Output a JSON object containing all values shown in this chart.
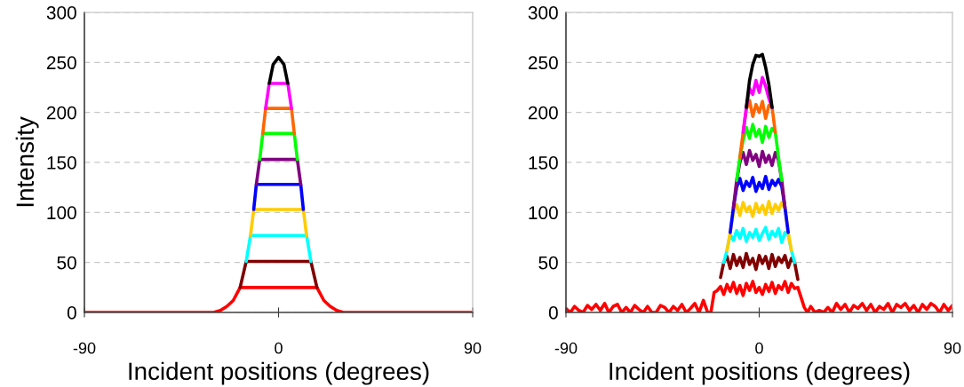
{
  "chart_data": [
    {
      "type": "line",
      "ylabel": "Intensity",
      "xlabel": "Incident positions (degrees)",
      "xlim": [
        -90,
        90
      ],
      "ylim": [
        0,
        300
      ],
      "xticks": [
        -90,
        0,
        90
      ],
      "yticks": [
        0,
        50,
        100,
        150,
        200,
        250,
        300
      ],
      "grid": "y",
      "x": [
        -90,
        -30,
        -27,
        -24,
        -21,
        -17.8,
        -15,
        -13,
        -11.5,
        -10.3,
        -8.7,
        -7.3,
        -6,
        -4.3,
        -2.5,
        0,
        2.5,
        4.3,
        6,
        7.3,
        8.7,
        10.3,
        11.5,
        13,
        15,
        17.8,
        21,
        24,
        27,
        30,
        90
      ],
      "series": [
        {
          "color": "#ff0000",
          "values": [
            0,
            0,
            2,
            6,
            12,
            25,
            25,
            25,
            25,
            25,
            25,
            25,
            25,
            25,
            25,
            25,
            25,
            25,
            25,
            25,
            25,
            25,
            25,
            25,
            25,
            25,
            12,
            6,
            2,
            0,
            0
          ]
        },
        {
          "color": "#800000",
          "values": [
            null,
            null,
            null,
            null,
            null,
            25,
            51,
            51,
            51,
            51,
            51,
            51,
            51,
            51,
            51,
            51,
            51,
            51,
            51,
            51,
            51,
            51,
            51,
            51,
            51,
            25,
            null,
            null,
            null,
            null,
            null
          ]
        },
        {
          "color": "#00ffff",
          "values": [
            null,
            null,
            null,
            null,
            null,
            null,
            51,
            77,
            77,
            77,
            77,
            77,
            77,
            77,
            77,
            77,
            77,
            77,
            77,
            77,
            77,
            77,
            77,
            77,
            51,
            null,
            null,
            null,
            null,
            null,
            null
          ]
        },
        {
          "color": "#ffcc00",
          "values": [
            null,
            null,
            null,
            null,
            null,
            null,
            null,
            77,
            103,
            103,
            103,
            103,
            103,
            103,
            103,
            103,
            103,
            103,
            103,
            103,
            103,
            103,
            103,
            77,
            null,
            null,
            null,
            null,
            null,
            null,
            null
          ]
        },
        {
          "color": "#0000ff",
          "values": [
            null,
            null,
            null,
            null,
            null,
            null,
            null,
            null,
            103,
            128,
            128,
            128,
            128,
            128,
            128,
            128,
            128,
            128,
            128,
            128,
            128,
            128,
            103,
            null,
            null,
            null,
            null,
            null,
            null,
            null,
            null
          ]
        },
        {
          "color": "#800080",
          "values": [
            null,
            null,
            null,
            null,
            null,
            null,
            null,
            null,
            null,
            128,
            153,
            153,
            153,
            153,
            153,
            153,
            153,
            153,
            153,
            153,
            153,
            128,
            null,
            null,
            null,
            null,
            null,
            null,
            null,
            null,
            null
          ]
        },
        {
          "color": "#00ff00",
          "values": [
            null,
            null,
            null,
            null,
            null,
            null,
            null,
            null,
            null,
            null,
            153,
            179,
            179,
            179,
            179,
            179,
            179,
            179,
            179,
            179,
            153,
            null,
            null,
            null,
            null,
            null,
            null,
            null,
            null,
            null,
            null
          ]
        },
        {
          "color": "#ff6600",
          "values": [
            null,
            null,
            null,
            null,
            null,
            null,
            null,
            null,
            null,
            null,
            null,
            179,
            204,
            204,
            204,
            204,
            204,
            204,
            204,
            179,
            null,
            null,
            null,
            null,
            null,
            null,
            null,
            null,
            null,
            null,
            null
          ]
        },
        {
          "color": "#ff00ff",
          "values": [
            null,
            null,
            null,
            null,
            null,
            null,
            null,
            null,
            null,
            null,
            null,
            null,
            204,
            229,
            229,
            229,
            229,
            229,
            204,
            null,
            null,
            null,
            null,
            null,
            null,
            null,
            null,
            null,
            null,
            null,
            null
          ]
        },
        {
          "color": "#000000",
          "values": [
            null,
            null,
            null,
            null,
            null,
            null,
            null,
            null,
            null,
            null,
            null,
            null,
            null,
            229,
            248,
            255,
            248,
            229,
            null,
            null,
            null,
            null,
            null,
            null,
            null,
            null,
            null,
            null,
            null,
            null,
            null
          ]
        }
      ]
    },
    {
      "type": "line",
      "xlabel": "Incident positions (degrees)",
      "xlim": [
        -90,
        90
      ],
      "ylim": [
        0,
        300
      ],
      "xticks": [
        -90,
        0,
        90
      ],
      "yticks": [
        0,
        50,
        100,
        150,
        200,
        250,
        300
      ],
      "grid": "y",
      "x": [
        -18,
        -16.5,
        -15,
        -13.5,
        -12,
        -10.5,
        -9,
        -7.5,
        -6,
        -4.5,
        -3,
        -1.5,
        0,
        1.5,
        3,
        4.5,
        6,
        7.5,
        9,
        10.5,
        12,
        13.5,
        15,
        16.5,
        18
      ],
      "series": [
        {
          "color": "#ff0000",
          "x": [
            -90,
            -88,
            -86,
            -84,
            -82,
            -80,
            -78,
            -76,
            -74,
            -72,
            -70,
            -68,
            -66,
            -64,
            -62,
            -60,
            -58,
            -56,
            -54,
            -52,
            -50,
            -48,
            -46,
            -44,
            -42,
            -40,
            -38,
            -36,
            -34,
            -32,
            -30,
            -28,
            -26,
            -24,
            -22.5,
            -21,
            -19.5,
            -18,
            -16.5,
            -15,
            -13.5,
            -12,
            -10.5,
            -9,
            -7.5,
            -6,
            -4.5,
            -3,
            -1.5,
            0,
            1.5,
            3,
            4.5,
            6,
            7.5,
            9,
            10.5,
            12,
            13.5,
            15,
            16.5,
            18,
            19.5,
            21,
            22.5,
            24,
            26,
            28,
            30,
            32,
            34,
            36,
            38,
            40,
            42,
            44,
            46,
            48,
            50,
            52,
            54,
            56,
            58,
            60,
            62,
            64,
            66,
            68,
            70,
            72,
            74,
            76,
            78,
            80,
            82,
            84,
            86,
            88,
            90
          ],
          "values": [
            4,
            0,
            6,
            2,
            0,
            7,
            3,
            8,
            2,
            9,
            0,
            6,
            8,
            0,
            5,
            0,
            7,
            3,
            0,
            6,
            0,
            0,
            7,
            5,
            0,
            6,
            2,
            8,
            0,
            4,
            9,
            0,
            12,
            0,
            0,
            20,
            22,
            26,
            18,
            28,
            21,
            30,
            19,
            27,
            17,
            29,
            22,
            31,
            20,
            25,
            18,
            28,
            21,
            30,
            19,
            27,
            23,
            31,
            20,
            29,
            24,
            25,
            15,
            5,
            0,
            6,
            0,
            2,
            0,
            5,
            0,
            9,
            3,
            8,
            0,
            7,
            4,
            9,
            2,
            8,
            0,
            6,
            3,
            9,
            0,
            8,
            5,
            9,
            2,
            7,
            0,
            8,
            3,
            9,
            6,
            0,
            8,
            2,
            7
          ]
        },
        {
          "color": "#800000",
          "values": [
            35,
            50,
            56,
            44,
            58,
            47,
            55,
            45,
            59,
            48,
            54,
            43,
            57,
            49,
            56,
            44,
            58,
            46,
            55,
            50,
            57,
            45,
            54,
            50,
            33
          ]
        },
        {
          "color": "#00ffff",
          "values": [
            null,
            50,
            62,
            78,
            72,
            82,
            74,
            84,
            71,
            80,
            75,
            83,
            72,
            79,
            85,
            73,
            81,
            76,
            84,
            70,
            80,
            78,
            62,
            50,
            null
          ]
        },
        {
          "color": "#ffcc00",
          "values": [
            null,
            null,
            62,
            80,
            100,
            108,
            97,
            110,
            101,
            106,
            96,
            109,
            100,
            107,
            98,
            111,
            99,
            108,
            102,
            110,
            104,
            80,
            62,
            null,
            null
          ]
        },
        {
          "color": "#0000ff",
          "values": [
            null,
            null,
            null,
            80,
            105,
            125,
            134,
            122,
            131,
            126,
            135,
            121,
            130,
            124,
            136,
            123,
            132,
            127,
            133,
            126,
            105,
            80,
            null,
            null,
            null
          ]
        },
        {
          "color": "#800080",
          "values": [
            null,
            null,
            null,
            null,
            105,
            132,
            150,
            160,
            148,
            162,
            152,
            158,
            146,
            161,
            150,
            157,
            147,
            160,
            152,
            132,
            105,
            null,
            null,
            null,
            null
          ]
        },
        {
          "color": "#00ff00",
          "values": [
            null,
            null,
            null,
            null,
            null,
            132,
            155,
            172,
            185,
            174,
            188,
            176,
            183,
            170,
            186,
            175,
            184,
            180,
            155,
            132,
            null,
            null,
            null,
            null,
            null
          ]
        },
        {
          "color": "#ff6600",
          "values": [
            null,
            null,
            null,
            null,
            null,
            null,
            155,
            180,
            203,
            212,
            196,
            208,
            200,
            211,
            194,
            207,
            205,
            180,
            null,
            null,
            null,
            null,
            null,
            null,
            null
          ]
        },
        {
          "color": "#ff00ff",
          "values": [
            null,
            null,
            null,
            null,
            null,
            null,
            null,
            180,
            205,
            224,
            218,
            232,
            220,
            235,
            226,
            214,
            205,
            null,
            null,
            null,
            null,
            null,
            null,
            null,
            null
          ]
        },
        {
          "color": "#000000",
          "values": [
            null,
            null,
            null,
            null,
            null,
            null,
            null,
            null,
            205,
            232,
            248,
            257,
            256,
            258,
            245,
            228,
            205,
            null,
            null,
            null,
            null,
            null,
            null,
            null,
            null
          ]
        }
      ]
    }
  ]
}
